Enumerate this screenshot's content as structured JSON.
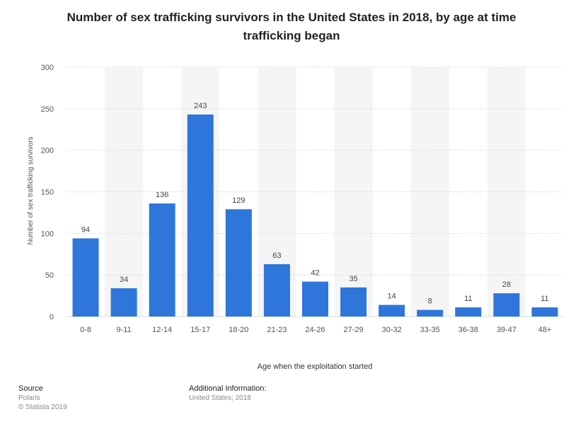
{
  "title": "Number of sex trafficking survivors in the United States in 2018, by age at time trafficking began",
  "footer": {
    "source_heading": "Source",
    "source_name": "Polaris",
    "copyright": "© Statista 2019",
    "additional_heading": "Additional Information:",
    "additional_text": "United States; 2018"
  },
  "colors": {
    "bar": "#2e76d9",
    "grid": "#d9d9d9",
    "band": "#f5f5f5",
    "label": "#444444",
    "tick": "#555555"
  },
  "chart_data": {
    "type": "bar",
    "title": "Number of sex trafficking survivors in the United States in 2018, by age at time trafficking began",
    "xlabel": "Age when the exploitation started",
    "ylabel": "Number of sex trafficking survivors",
    "ylim": [
      0,
      300
    ],
    "yticks": [
      0,
      50,
      100,
      150,
      200,
      250,
      300
    ],
    "grid": true,
    "categories": [
      "0-8",
      "9-11",
      "12-14",
      "15-17",
      "18-20",
      "21-23",
      "24-26",
      "27-29",
      "30-32",
      "33-35",
      "36-38",
      "39-47",
      "48+"
    ],
    "values": [
      94,
      34,
      136,
      243,
      129,
      63,
      42,
      35,
      14,
      8,
      11,
      28,
      11
    ]
  }
}
